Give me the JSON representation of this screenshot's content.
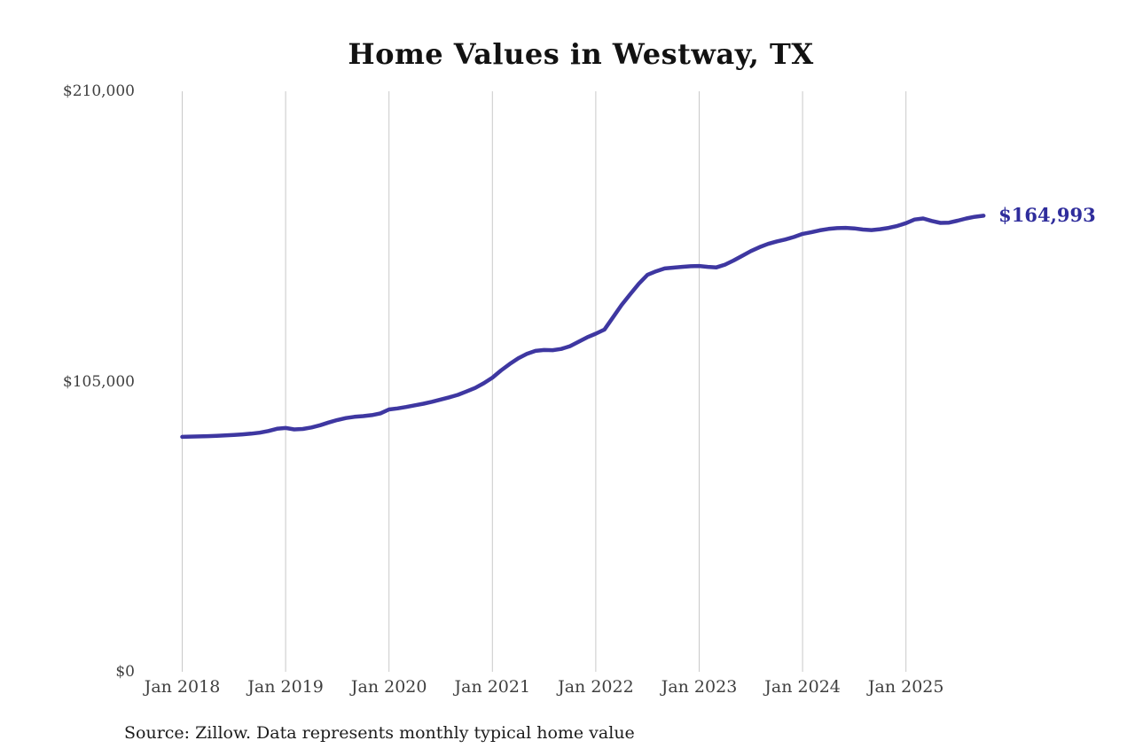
{
  "page": {
    "title": "Home Values in Westway, TX",
    "source_note": "Source: Zillow. Data represents monthly typical home value"
  },
  "colors": {
    "line": "#3E37A1",
    "end_label": "#2F2D9C",
    "gridline": "#C9C9C9",
    "axis_label": "#3F3F3F",
    "title": "#121212",
    "background": "#FFFFFF"
  },
  "end_label": {
    "text": "$164,993",
    "value": 164993
  },
  "y_axis": {
    "ticks": [
      {
        "label": "$210,000",
        "value": 210000
      },
      {
        "label": "$105,000",
        "value": 105000
      },
      {
        "label": "$0",
        "value": 0
      }
    ]
  },
  "x_axis": {
    "ticks": [
      {
        "label": "Jan 2018",
        "month_index": 0
      },
      {
        "label": "Jan 2019",
        "month_index": 12
      },
      {
        "label": "Jan 2020",
        "month_index": 24
      },
      {
        "label": "Jan 2021",
        "month_index": 36
      },
      {
        "label": "Jan 2022",
        "month_index": 48
      },
      {
        "label": "Jan 2023",
        "month_index": 60
      },
      {
        "label": "Jan 2024",
        "month_index": 72
      },
      {
        "label": "Jan 2025",
        "month_index": 84
      }
    ]
  },
  "chart_data": {
    "type": "line",
    "title": "Home Values in Westway, TX",
    "xlabel": "",
    "ylabel": "",
    "ylim": [
      0,
      210000
    ],
    "grid": "vertical-yearly-only",
    "legend_position": "none",
    "x": [
      "2018-01",
      "2018-02",
      "2018-03",
      "2018-04",
      "2018-05",
      "2018-06",
      "2018-07",
      "2018-08",
      "2018-09",
      "2018-10",
      "2018-11",
      "2018-12",
      "2019-01",
      "2019-02",
      "2019-03",
      "2019-04",
      "2019-05",
      "2019-06",
      "2019-07",
      "2019-08",
      "2019-09",
      "2019-10",
      "2019-11",
      "2019-12",
      "2020-01",
      "2020-02",
      "2020-03",
      "2020-04",
      "2020-05",
      "2020-06",
      "2020-07",
      "2020-08",
      "2020-09",
      "2020-10",
      "2020-11",
      "2020-12",
      "2021-01",
      "2021-02",
      "2021-03",
      "2021-04",
      "2021-05",
      "2021-06",
      "2021-07",
      "2021-08",
      "2021-09",
      "2021-10",
      "2021-11",
      "2021-12",
      "2022-01",
      "2022-02",
      "2022-03",
      "2022-04",
      "2022-05",
      "2022-06",
      "2022-07",
      "2022-08",
      "2022-09",
      "2022-10",
      "2022-11",
      "2022-12",
      "2023-01",
      "2023-02",
      "2023-03",
      "2023-04",
      "2023-05",
      "2023-06",
      "2023-07",
      "2023-08",
      "2023-09",
      "2023-10",
      "2023-11",
      "2023-12",
      "2024-01",
      "2024-02",
      "2024-03",
      "2024-04",
      "2024-05",
      "2024-06",
      "2024-07",
      "2024-08",
      "2024-09",
      "2024-10",
      "2024-11",
      "2024-12",
      "2025-01",
      "2025-02",
      "2025-03",
      "2025-04",
      "2025-05",
      "2025-06",
      "2025-07",
      "2025-08",
      "2025-09",
      "2025-10"
    ],
    "series": [
      {
        "name": "Typical home value",
        "color": "#3E37A1",
        "values": [
          85000,
          85080,
          85160,
          85260,
          85380,
          85520,
          85700,
          85900,
          86150,
          86500,
          87100,
          87900,
          88200,
          87700,
          87850,
          88400,
          89200,
          90200,
          91100,
          91800,
          92250,
          92500,
          92850,
          93500,
          94900,
          95300,
          95800,
          96400,
          97000,
          97700,
          98500,
          99300,
          100200,
          101400,
          102700,
          104400,
          106400,
          109000,
          111300,
          113400,
          115000,
          116100,
          116400,
          116350,
          116800,
          117800,
          119400,
          121000,
          122300,
          123800,
          128200,
          132700,
          136600,
          140400,
          143600,
          144900,
          145900,
          146200,
          146500,
          146700,
          146800,
          146500,
          146300,
          147300,
          148800,
          150500,
          152200,
          153600,
          154800,
          155700,
          156400,
          157300,
          158400,
          159000,
          159700,
          160200,
          160500,
          160600,
          160400,
          160000,
          159800,
          160100,
          160600,
          161300,
          162300,
          163600,
          164000,
          163100,
          162400,
          162500,
          163200,
          164000,
          164600,
          164993
        ]
      }
    ],
    "annotations": [
      {
        "text": "$164,993",
        "x": "2025-10",
        "y": 164993,
        "color": "#2F2D9C",
        "position": "right-of-line-end"
      }
    ]
  }
}
